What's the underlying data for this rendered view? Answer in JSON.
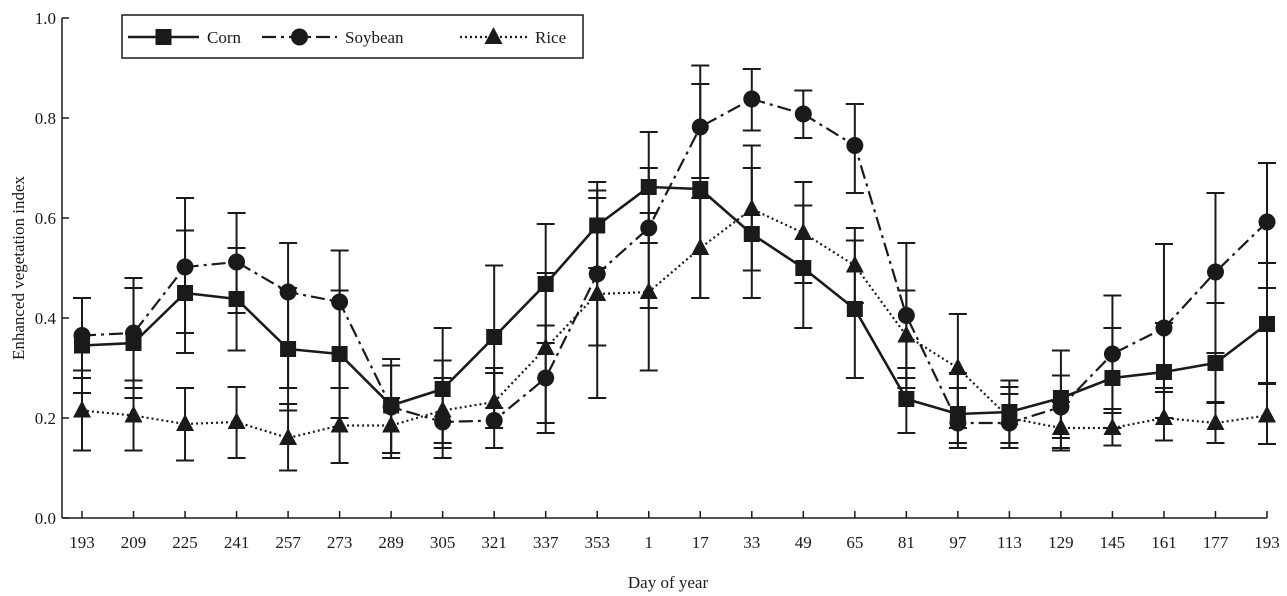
{
  "chart_data": {
    "type": "line",
    "title": "",
    "xlabel": "Day of year",
    "ylabel": "Enhanced vegetation index",
    "ylim": [
      0.0,
      1.0
    ],
    "yticks": [
      "0.0",
      "0.2",
      "0.4",
      "0.6",
      "0.8",
      "1.0"
    ],
    "categories": [
      "193",
      "209",
      "225",
      "241",
      "257",
      "273",
      "289",
      "305",
      "321",
      "337",
      "353",
      "1",
      "17",
      "33",
      "49",
      "65",
      "81",
      "97",
      "113",
      "129",
      "145",
      "161",
      "177",
      "193"
    ],
    "legend_position": "top-left",
    "grid": false,
    "series": [
      {
        "name": "Corn",
        "line": "solid",
        "marker": "square",
        "values": [
          0.345,
          0.35,
          0.45,
          0.438,
          0.338,
          0.328,
          0.225,
          0.258,
          0.362,
          0.468,
          0.585,
          0.662,
          0.658,
          0.568,
          0.5,
          0.418,
          0.238,
          0.208,
          0.212,
          0.24,
          0.28,
          0.292,
          0.31,
          0.388
        ],
        "err_low": [
          0.25,
          0.24,
          0.33,
          0.335,
          0.215,
          0.2,
          0.13,
          0.14,
          0.22,
          0.35,
          0.5,
          0.55,
          0.44,
          0.44,
          0.38,
          0.28,
          0.17,
          0.15,
          0.15,
          0.14,
          0.18,
          0.2,
          0.23,
          0.27
        ],
        "err_high": [
          0.44,
          0.46,
          0.575,
          0.54,
          0.46,
          0.455,
          0.318,
          0.38,
          0.505,
          0.588,
          0.672,
          0.772,
          0.905,
          0.7,
          0.625,
          0.555,
          0.3,
          0.26,
          0.275,
          0.335,
          0.38,
          0.39,
          0.43,
          0.51
        ]
      },
      {
        "name": "Soybean",
        "line": "dash-dot",
        "marker": "circle",
        "values": [
          0.365,
          0.37,
          0.502,
          0.512,
          0.452,
          0.432,
          0.222,
          0.192,
          0.195,
          0.28,
          0.488,
          0.58,
          0.782,
          0.838,
          0.808,
          0.745,
          0.405,
          0.19,
          0.19,
          0.222,
          0.328,
          0.38,
          0.492,
          0.592
        ],
        "err_low": [
          0.28,
          0.26,
          0.37,
          0.41,
          0.26,
          0.26,
          0.12,
          0.12,
          0.14,
          0.17,
          0.345,
          0.42,
          0.68,
          0.775,
          0.76,
          0.65,
          0.26,
          0.14,
          0.14,
          0.16,
          0.21,
          0.26,
          0.33,
          0.46
        ],
        "err_high": [
          0.44,
          0.48,
          0.64,
          0.61,
          0.55,
          0.535,
          0.305,
          0.315,
          0.3,
          0.385,
          0.64,
          0.7,
          0.868,
          0.898,
          0.855,
          0.828,
          0.55,
          0.29,
          0.248,
          0.285,
          0.445,
          0.548,
          0.65,
          0.71
        ]
      },
      {
        "name": "Rice",
        "line": "dotted",
        "marker": "triangle",
        "values": [
          0.215,
          0.205,
          0.188,
          0.192,
          0.16,
          0.185,
          0.185,
          0.215,
          0.232,
          0.34,
          0.448,
          0.452,
          0.54,
          0.618,
          0.57,
          0.505,
          0.365,
          0.3,
          0.2,
          0.18,
          0.18,
          0.2,
          0.19,
          0.205
        ],
        "err_low": [
          0.135,
          0.135,
          0.115,
          0.12,
          0.095,
          0.11,
          0.13,
          0.15,
          0.18,
          0.19,
          0.24,
          0.295,
          0.44,
          0.495,
          0.47,
          0.43,
          0.28,
          0.18,
          0.14,
          0.135,
          0.145,
          0.155,
          0.15,
          0.148
        ],
        "err_high": [
          0.295,
          0.275,
          0.26,
          0.262,
          0.228,
          0.26,
          0.24,
          0.28,
          0.29,
          0.49,
          0.655,
          0.61,
          0.64,
          0.745,
          0.672,
          0.58,
          0.455,
          0.408,
          0.262,
          0.232,
          0.218,
          0.252,
          0.232,
          0.268
        ]
      }
    ]
  }
}
